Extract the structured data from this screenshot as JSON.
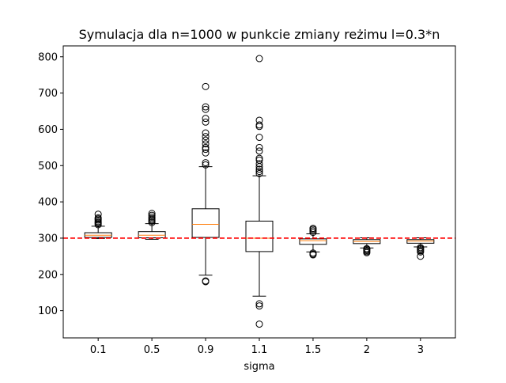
{
  "chart_data": {
    "type": "boxplot",
    "title": "Symulacja dla n=1000 w punkcie zmiany reżimu l=0.3*n",
    "xlabel": "sigma",
    "ylabel": "",
    "categories": [
      "0.1",
      "0.5",
      "0.9",
      "1.1",
      "1.5",
      "2",
      "3"
    ],
    "ylim": [
      25,
      830
    ],
    "yticks": [
      100,
      200,
      300,
      400,
      500,
      600,
      700,
      800
    ],
    "yticklabels": [
      "100",
      "200",
      "300",
      "400",
      "500",
      "600",
      "700",
      "800"
    ],
    "reference_line": {
      "y": 300,
      "style": "dashed",
      "color": "#ff0000"
    },
    "grid": false,
    "colors": {
      "box": "#000000",
      "median": "#ff7f0e",
      "reference": "#ff0000",
      "background": "#ffffff"
    },
    "boxes": [
      {
        "category": "0.1",
        "whisker_low": 299,
        "q1": 302,
        "median": 308,
        "q3": 315,
        "whisker_high": 333,
        "outliers": [
          337,
          340,
          343,
          346,
          350,
          353,
          356,
          366
        ]
      },
      {
        "category": "0.5",
        "whisker_low": 297,
        "q1": 301,
        "median": 308,
        "q3": 318,
        "whisker_high": 340,
        "outliers": [
          343,
          347,
          350,
          354,
          358,
          363,
          368
        ]
      },
      {
        "category": "0.9",
        "whisker_low": 198,
        "q1": 302,
        "median": 338,
        "q3": 381,
        "whisker_high": 497,
        "outliers": [
          180,
          182,
          502,
          508,
          535,
          545,
          550,
          560,
          570,
          580,
          590,
          620,
          630,
          655,
          662,
          718
        ]
      },
      {
        "category": "1.1",
        "whisker_low": 140,
        "q1": 263,
        "median": 300,
        "q3": 347,
        "whisker_high": 472,
        "outliers": [
          63,
          113,
          119,
          478,
          484,
          490,
          497,
          505,
          515,
          520,
          540,
          550,
          578,
          608,
          612,
          625,
          795
        ]
      },
      {
        "category": "1.5",
        "whisker_low": 262,
        "q1": 283,
        "median": 293,
        "q3": 298,
        "whisker_high": 312,
        "outliers": [
          254,
          256,
          259,
          316,
          320,
          324,
          327
        ]
      },
      {
        "category": "2",
        "whisker_low": 273,
        "q1": 285,
        "median": 291,
        "q3": 296,
        "whisker_high": 301,
        "outliers": [
          260,
          263,
          266,
          269,
          271
        ]
      },
      {
        "category": "3",
        "whisker_low": 276,
        "q1": 286,
        "median": 292,
        "q3": 296,
        "whisker_high": 301,
        "outliers": [
          250,
          262,
          265,
          268,
          271,
          274
        ]
      }
    ]
  }
}
